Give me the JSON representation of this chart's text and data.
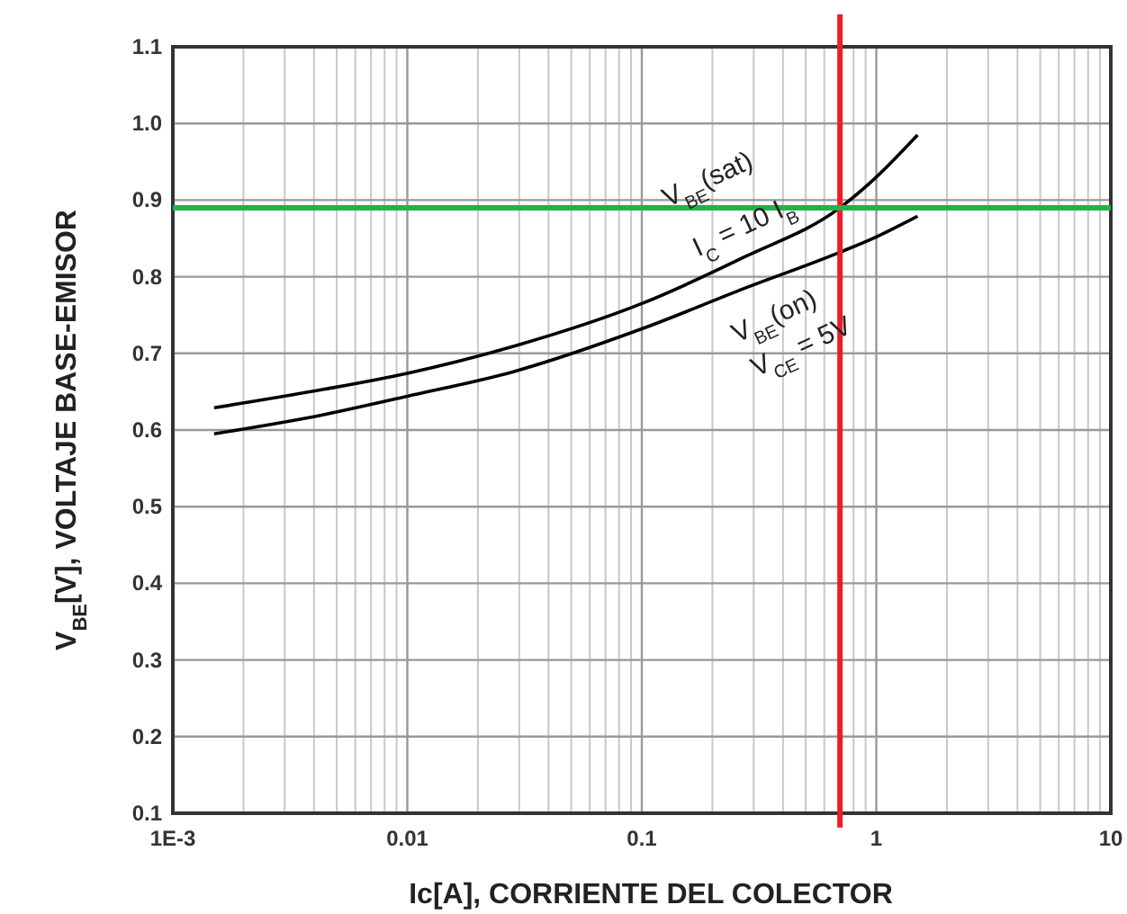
{
  "chart_data": {
    "type": "line",
    "xlabel": "Ic[A], CORRIENTE DEL COLECTOR",
    "ylabel": "V$_{BE}$[V], VOLTAJE BASE-EMISOR",
    "log": "x",
    "xlim": [
      0.001,
      10
    ],
    "xticks": [
      {
        "value": 0.001,
        "label": "1E-3"
      },
      0.01,
      0.1,
      1,
      10
    ],
    "ylim": [
      0.1,
      1.1
    ],
    "yticks": [
      0.1,
      0.2,
      0.3,
      0.4,
      0.5,
      0.6,
      0.7,
      0.8,
      0.9,
      {
        "value": 1,
        "label": "1.0"
      },
      1.1
    ],
    "grid": true,
    "marker": "none",
    "line_style": "solid",
    "series": [
      {
        "color": "#000000",
        "x": [
          0.0015,
          0.0044,
          0.01,
          0.029,
          0.1,
          0.275,
          0.7,
          1.0,
          1.5
        ],
        "values": [
          0.629,
          0.653,
          0.674,
          0.71,
          0.765,
          0.826,
          0.89,
          0.93,
          0.985
        ]
      },
      {
        "color": "#000000",
        "x": [
          0.0015,
          0.0044,
          0.01,
          0.029,
          0.1,
          0.275,
          0.7,
          1.0,
          1.5
        ],
        "values": [
          0.595,
          0.62,
          0.644,
          0.677,
          0.732,
          0.785,
          0.832,
          0.852,
          0.879
        ]
      }
    ],
    "ref_lines": [
      {
        "axis": "x",
        "value": 0.7,
        "color": "#ee1c25"
      },
      {
        "axis": "y",
        "value": 0.89,
        "color": "#22b14c"
      }
    ],
    "annotations": [
      "V$_{BE}$(sat)",
      "I$_{C}$ = 10 I$_{B}$",
      "V$_{BE}$(on)",
      "V$_{CE}$ = 5V"
    ]
  }
}
